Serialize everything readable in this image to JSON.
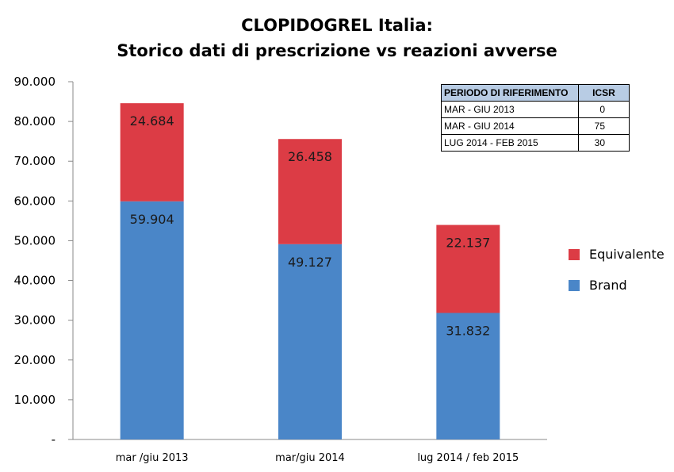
{
  "chart_data": {
    "type": "bar",
    "stacked": true,
    "title_line1": "CLOPIDOGREL  Italia:",
    "title_line2": "Storico dati di prescrizione vs reazioni avverse",
    "categories": [
      "mar /giu 2013",
      "mar/giu 2014",
      "lug 2014 / feb 2015"
    ],
    "series": [
      {
        "name": "Brand",
        "color": "#4a86c8",
        "values": [
          59904,
          49127,
          31832
        ],
        "labels": [
          "59.904",
          "49.127",
          "31.832"
        ]
      },
      {
        "name": "Equivalente",
        "color": "#dc3c45",
        "values": [
          24684,
          26458,
          22137
        ],
        "labels": [
          "24.684",
          "26.458",
          "22.137"
        ]
      }
    ],
    "ylim": [
      0,
      90000
    ],
    "y_ticks": [
      "-",
      "10.000",
      "20.000",
      "30.000",
      "40.000",
      "50.000",
      "60.000",
      "70.000",
      "80.000",
      "90.000"
    ],
    "grid": false,
    "legend_position": "right"
  },
  "table": {
    "headers": [
      "PERIODO DI RIFERIMENTO",
      "ICSR"
    ],
    "rows": [
      [
        "MAR - GIU 2013",
        "0"
      ],
      [
        "MAR - GIU 2014",
        "75"
      ],
      [
        "LUG 2014 - FEB 2015",
        "30"
      ]
    ]
  }
}
